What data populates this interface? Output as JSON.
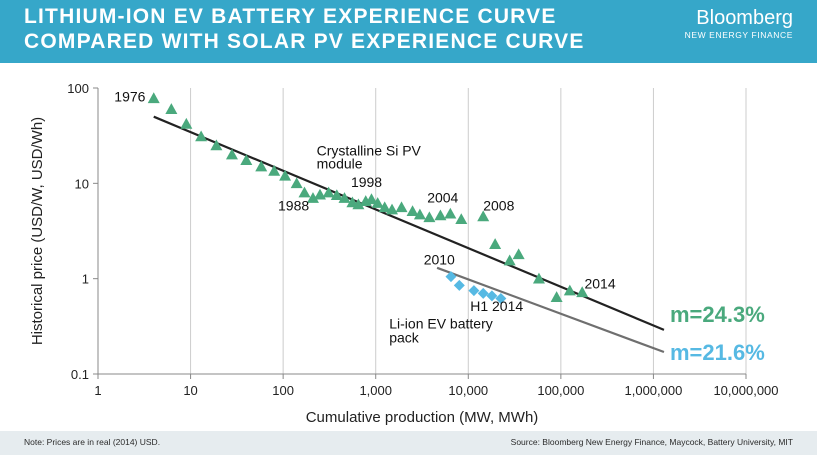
{
  "header": {
    "title_line1": "LITHIUM-ION EV BATTERY EXPERIENCE CURVE",
    "title_line2": "COMPARED WITH SOLAR PV EXPERIENCE CURVE",
    "brand_name": "Bloomberg",
    "brand_sub": "NEW ENERGY FINANCE"
  },
  "footer": {
    "note": "Note: Prices are in real (2014) USD.",
    "source": "Source: Bloomberg New Energy Finance, Maycock, Battery University, MIT"
  },
  "colors": {
    "header_bg": "#36a7c9",
    "pv_marker": "#4aa97d",
    "pv_line": "#222222",
    "liion_marker": "#56b9e3",
    "liion_line": "#6f6f6f",
    "grid": "#cccccc"
  },
  "chart_data": {
    "type": "scatter",
    "x_scale": "log",
    "y_scale": "log",
    "xlim": [
      1,
      10000000
    ],
    "ylim": [
      0.1,
      100
    ],
    "xlabel": "Cumulative production (MW, MWh)",
    "ylabel": "Historical price (USD/W, USD/Wh)",
    "x_ticks": [
      1,
      10,
      100,
      1000,
      10000,
      100000,
      1000000,
      10000000
    ],
    "x_tick_labels": [
      "1",
      "10",
      "100",
      "1,000",
      "10,000",
      "100,000",
      "1,000,000",
      "10,000,000"
    ],
    "y_ticks": [
      0.1,
      1,
      10,
      100
    ],
    "y_tick_labels": [
      "0.1",
      "1",
      "10",
      "100"
    ],
    "grid": "vertical",
    "series": [
      {
        "name": "Crystalline Si PV module",
        "marker": "triangle",
        "points": [
          [
            4,
            78
          ],
          [
            6.2,
            60
          ],
          [
            9,
            42
          ],
          [
            13,
            31
          ],
          [
            19,
            25
          ],
          [
            28,
            20
          ],
          [
            40,
            17.5
          ],
          [
            58,
            15
          ],
          [
            80,
            13.5
          ],
          [
            105,
            12
          ],
          [
            140,
            10
          ],
          [
            170,
            8
          ],
          [
            210,
            7
          ],
          [
            250,
            7.6
          ],
          [
            310,
            8
          ],
          [
            380,
            7.5
          ],
          [
            460,
            7
          ],
          [
            560,
            6.3
          ],
          [
            650,
            6
          ],
          [
            780,
            6.5
          ],
          [
            900,
            6.8
          ],
          [
            1050,
            6.2
          ],
          [
            1250,
            5.6
          ],
          [
            1500,
            5.3
          ],
          [
            1900,
            5.6
          ],
          [
            2500,
            5.1
          ],
          [
            3000,
            4.7
          ],
          [
            3800,
            4.4
          ],
          [
            5000,
            4.6
          ],
          [
            6400,
            4.8
          ],
          [
            8400,
            4.2
          ],
          [
            14500,
            4.5
          ],
          [
            19500,
            2.3
          ],
          [
            28000,
            1.55
          ],
          [
            35000,
            1.8
          ],
          [
            58000,
            1.0
          ],
          [
            90000,
            0.64
          ],
          [
            125000,
            0.75
          ],
          [
            170000,
            0.72
          ]
        ],
        "fit": {
          "from": [
            4,
            50
          ],
          "to": [
            1300000,
            0.29
          ]
        }
      },
      {
        "name": "Li-ion EV battery pack",
        "marker": "diamond",
        "points": [
          [
            6500,
            1.05
          ],
          [
            8000,
            0.85
          ],
          [
            11500,
            0.75
          ],
          [
            14500,
            0.7
          ],
          [
            18000,
            0.66
          ],
          [
            22500,
            0.62
          ]
        ],
        "fit": {
          "from": [
            4600,
            1.3
          ],
          "to": [
            1300000,
            0.17
          ]
        }
      }
    ],
    "annotations": [
      {
        "text": "1976",
        "x": 1.5,
        "y": 72
      },
      {
        "text": "Crystalline Si PV",
        "x": 230,
        "y": 19.5
      },
      {
        "text": "module",
        "x": 230,
        "y": 14.3
      },
      {
        "text": "1988",
        "x": 88,
        "y": 5.2
      },
      {
        "text": "1998",
        "x": 540,
        "y": 9.1
      },
      {
        "text": "2004",
        "x": 3600,
        "y": 6.3
      },
      {
        "text": "2008",
        "x": 14500,
        "y": 5.2
      },
      {
        "text": "2010",
        "x": 3300,
        "y": 1.4
      },
      {
        "text": "2014",
        "x": 180000,
        "y": 0.79
      },
      {
        "text": "H1 2014",
        "x": 10500,
        "y": 0.46
      },
      {
        "text": "Li-ion EV battery",
        "x": 1400,
        "y": 0.3
      },
      {
        "text": "pack",
        "x": 1400,
        "y": 0.215
      }
    ],
    "slope_labels": [
      {
        "text": "m=24.3%",
        "series": "Crystalline Si PV module"
      },
      {
        "text": "m=21.6%",
        "series": "Li-ion EV battery pack"
      }
    ]
  }
}
